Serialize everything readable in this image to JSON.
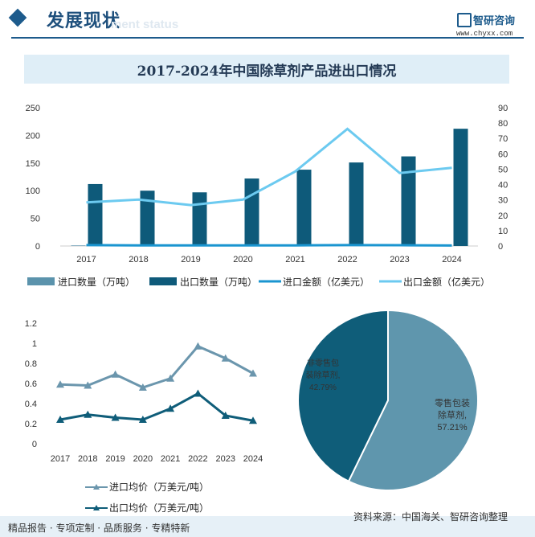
{
  "header": {
    "title": "发展现状",
    "subtitle": "ment status"
  },
  "brand": {
    "name": "智研咨询",
    "url": "www.chyxx.com"
  },
  "colors": {
    "import_qty": "#5b93ac",
    "export_qty": "#0e5a7a",
    "import_value": "#1a95d0",
    "export_value": "#6ccaf0",
    "import_price": "#6b96ad",
    "export_price": "#0f5d79",
    "pie_retail": "#5f96ad",
    "pie_nonretail": "#0f5d79"
  },
  "chart_data": [
    {
      "type": "bar",
      "title": "2017-2024年中国除草剂产品进出口情况",
      "categories": [
        "2017",
        "2018",
        "2019",
        "2020",
        "2021",
        "2022",
        "2023",
        "2024"
      ],
      "y_left_ticks": [
        "0",
        "50",
        "100",
        "150",
        "200",
        "250"
      ],
      "y_left_lim": [
        0,
        250
      ],
      "y_right_ticks": [
        "0",
        "10",
        "20",
        "30",
        "40",
        "50",
        "60",
        "70",
        "80",
        "90"
      ],
      "y_right_lim": [
        0,
        90
      ],
      "series": [
        {
          "name": "进口数量（万吨）",
          "axis": "left",
          "type": "bar",
          "values": [
            1,
            1,
            1,
            1,
            1,
            1,
            1,
            1
          ]
        },
        {
          "name": "出口数量（万吨）",
          "axis": "left",
          "type": "bar",
          "values": [
            112,
            100,
            97,
            122,
            138,
            151,
            162,
            212
          ]
        },
        {
          "name": "进口金额（亿美元）",
          "axis": "right",
          "type": "line",
          "values": [
            0.6,
            0.4,
            0.4,
            0.4,
            0.4,
            0.6,
            0.5,
            0.3
          ]
        },
        {
          "name": "出口金额（亿美元）",
          "axis": "right",
          "type": "line",
          "values": [
            28.4,
            30.2,
            26.6,
            30.2,
            48.5,
            76.2,
            47.5,
            50.9
          ]
        }
      ]
    },
    {
      "type": "line",
      "categories": [
        "2017",
        "2018",
        "2019",
        "2020",
        "2021",
        "2022",
        "2023",
        "2024"
      ],
      "y_ticks": [
        "0",
        "0.2",
        "0.4",
        "0.6",
        "0.8",
        "1",
        "1.2"
      ],
      "ylim": [
        0,
        1.2
      ],
      "series": [
        {
          "name": "进口均价（万美元/吨）",
          "values": [
            0.59,
            0.58,
            0.69,
            0.56,
            0.65,
            0.97,
            0.85,
            0.7
          ]
        },
        {
          "name": "出口均价（万美元/吨）",
          "values": [
            0.24,
            0.29,
            0.26,
            0.24,
            0.35,
            0.5,
            0.28,
            0.23
          ]
        }
      ]
    },
    {
      "type": "pie",
      "slices": [
        {
          "label_lines": [
            "零售包装",
            "除草剂,",
            "57.21%"
          ],
          "value": 57.21
        },
        {
          "label_lines": [
            "非零售包",
            "装除草剂,",
            "42.79%"
          ],
          "value": 42.79
        }
      ]
    }
  ],
  "footer": {
    "left": "精品报告 · 专项定制 · 品质服务 · 专精特新",
    "source": "资料来源：中国海关、智研咨询整理"
  }
}
